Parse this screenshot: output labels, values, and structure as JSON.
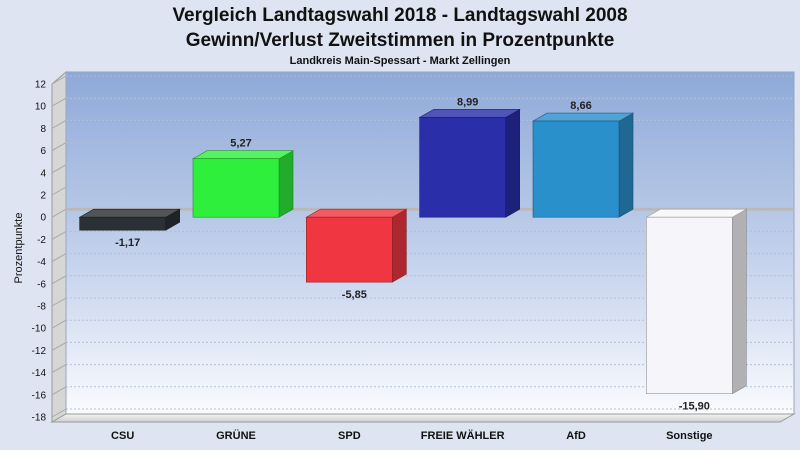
{
  "chart_data": {
    "type": "bar",
    "title": "Vergleich Landtagswahl 2018 - Landtagswahl 2008",
    "subtitle_line": "Gewinn/Verlust Zweitstimmen in Prozentpunkte",
    "caption": "Landkreis Main-Spessart - Markt Zellingen",
    "xlabel": "",
    "ylabel": "Prozentpunkte",
    "ylim": [
      -18,
      12
    ],
    "yticks": [
      12,
      10,
      8,
      6,
      4,
      2,
      0,
      -2,
      -4,
      -6,
      -8,
      -10,
      -12,
      -14,
      -16,
      -18
    ],
    "ytick_labels": [
      "12",
      "10",
      "8",
      "6",
      "4",
      "2",
      "0",
      "-2",
      "-4",
      "-6",
      "-8",
      "-10",
      "-12",
      "-14",
      "-16",
      "-18"
    ],
    "categories": [
      "CSU",
      "GRÜNE",
      "SPD",
      "FREIE WÄHLER",
      "AfD",
      "Sonstige"
    ],
    "values": [
      -1.17,
      5.27,
      -5.85,
      8.99,
      8.66,
      -15.9
    ],
    "value_labels": [
      "-1,17",
      "5,27",
      "-5,85",
      "8,99",
      "8,66",
      "-15,90"
    ],
    "colors": [
      "#2b3036",
      "#2ef03c",
      "#f03640",
      "#2a2ea8",
      "#2a90cc",
      "#f6f6fa"
    ],
    "grid": true,
    "legend": "none"
  }
}
